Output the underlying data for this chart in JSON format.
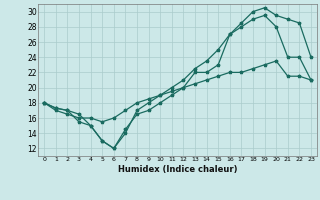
{
  "xlabel": "Humidex (Indice chaleur)",
  "bg_color": "#cce8e8",
  "grid_color": "#aacccc",
  "line_color": "#1a6b60",
  "xlim": [
    -0.5,
    23.5
  ],
  "ylim": [
    11,
    31
  ],
  "yticks": [
    12,
    14,
    16,
    18,
    20,
    22,
    24,
    26,
    28,
    30
  ],
  "xticks": [
    0,
    1,
    2,
    3,
    4,
    5,
    6,
    7,
    8,
    9,
    10,
    11,
    12,
    13,
    14,
    15,
    16,
    17,
    18,
    19,
    20,
    21,
    22,
    23
  ],
  "line1_x": [
    0,
    1,
    2,
    3,
    4,
    5,
    6,
    7,
    8,
    9,
    10,
    11,
    12,
    13,
    14,
    15,
    16,
    17,
    18,
    19,
    20,
    21,
    22,
    23
  ],
  "line1_y": [
    18,
    17.3,
    17,
    15.5,
    15,
    13,
    12,
    14.5,
    16.5,
    17,
    18,
    19,
    20,
    22,
    22,
    23,
    27,
    28,
    29,
    29.5,
    28,
    24,
    24,
    21
  ],
  "line2_x": [
    0,
    1,
    2,
    3,
    4,
    5,
    6,
    7,
    8,
    9,
    10,
    11,
    12,
    13,
    14,
    15,
    16,
    17,
    18,
    19,
    20,
    21,
    22,
    23
  ],
  "line2_y": [
    18,
    17.3,
    17,
    16.5,
    15,
    13,
    12,
    14,
    17,
    18,
    19,
    20,
    21,
    22.5,
    23.5,
    25,
    27,
    28.5,
    30,
    30.5,
    29.5,
    29,
    28.5,
    24
  ],
  "line3_x": [
    0,
    1,
    2,
    3,
    4,
    5,
    6,
    7,
    8,
    9,
    10,
    11,
    12,
    13,
    14,
    15,
    16,
    17,
    18,
    19,
    20,
    21,
    22,
    23
  ],
  "line3_y": [
    18,
    17,
    16.5,
    16,
    16,
    15.5,
    16,
    17,
    18,
    18.5,
    19,
    19.5,
    20,
    20.5,
    21,
    21.5,
    22,
    22,
    22.5,
    23,
    23.5,
    21.5,
    21.5,
    21
  ]
}
